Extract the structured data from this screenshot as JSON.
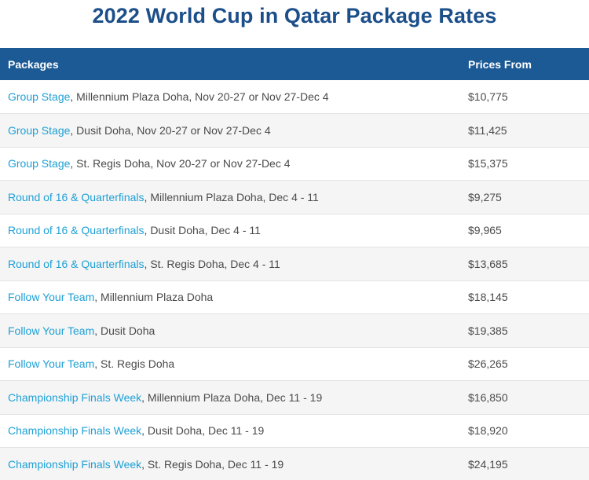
{
  "title": "2022 World Cup in Qatar Package Rates",
  "table": {
    "headers": {
      "packages": "Packages",
      "prices": "Prices From"
    },
    "rows": [
      {
        "link": "Group Stage",
        "detail": ", Millennium Plaza Doha, Nov 20-27 or Nov 27-Dec 4",
        "price": "$10,775"
      },
      {
        "link": "Group Stage",
        "detail": ", Dusit Doha, Nov 20-27 or Nov 27-Dec 4",
        "price": "$11,425"
      },
      {
        "link": "Group Stage",
        "detail": ", St. Regis Doha, Nov 20-27 or Nov 27-Dec 4",
        "price": "$15,375"
      },
      {
        "link": "Round of 16 & Quarterfinals",
        "detail": ", Millennium Plaza Doha, Dec 4 - 11",
        "price": "$9,275"
      },
      {
        "link": "Round of 16 & Quarterfinals",
        "detail": ", Dusit Doha, Dec 4 - 11",
        "price": "$9,965"
      },
      {
        "link": "Round of 16 & Quarterfinals",
        "detail": ", St. Regis Doha, Dec 4 - 11",
        "price": "$13,685"
      },
      {
        "link": "Follow Your Team",
        "detail": ", Millennium Plaza Doha",
        "price": "$18,145"
      },
      {
        "link": "Follow Your Team",
        "detail": ", Dusit Doha",
        "price": "$19,385"
      },
      {
        "link": "Follow Your Team",
        "detail": ", St. Regis Doha",
        "price": "$26,265"
      },
      {
        "link": "Championship Finals Week",
        "detail": ", Millennium Plaza Doha, Dec 11 - 19",
        "price": "$16,850"
      },
      {
        "link": "Championship Finals Week",
        "detail": ", Dusit Doha, Dec 11 - 19",
        "price": "$18,920"
      },
      {
        "link": "Championship Finals Week",
        "detail": ", St. Regis Doha, Dec 11 - 19",
        "price": "$24,195"
      }
    ]
  },
  "colors": {
    "title": "#1c4f8a",
    "header_bg": "#1c5a96",
    "link": "#1ea0d6"
  }
}
